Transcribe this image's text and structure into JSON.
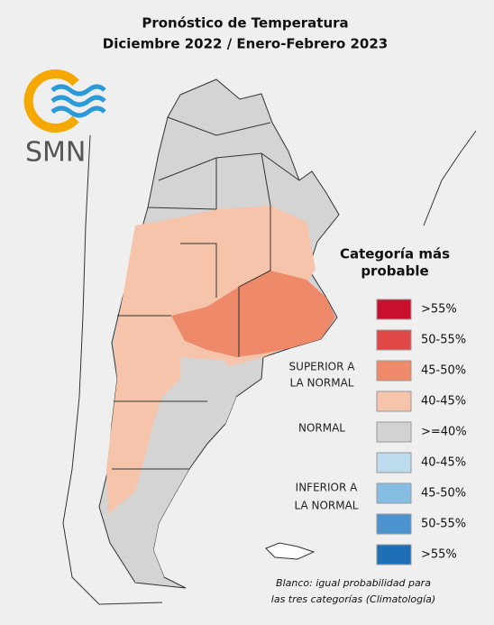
{
  "header": {
    "title": "Pronóstico de Temperatura",
    "subtitle": "Diciembre 2022 / Enero-Febrero 2023"
  },
  "logo": {
    "text": "SMN"
  },
  "legend": {
    "title_lines": [
      "Categoría más",
      "probable"
    ],
    "items": [
      {
        "label": ">55%",
        "color": "#c8102e"
      },
      {
        "label": "50-55%",
        "color": "#e04848"
      },
      {
        "label": "45-50%",
        "color": "#ee8a6a"
      },
      {
        "label": "40-45%",
        "color": "#f6c4ab"
      },
      {
        "label": ">=40%",
        "color": "#d2d2d2"
      },
      {
        "label": "40-45%",
        "color": "#bcdcee"
      },
      {
        "label": "45-50%",
        "color": "#86bde2"
      },
      {
        "label": "50-55%",
        "color": "#4a93cf"
      },
      {
        "label": ">55%",
        "color": "#1f6fb7"
      }
    ],
    "groups": [
      {
        "lines": [
          "SUPERIOR A",
          "LA NORMAL"
        ]
      },
      {
        "lines": [
          "NORMAL"
        ]
      },
      {
        "lines": [
          "INFERIOR A",
          "LA NORMAL"
        ]
      }
    ]
  },
  "footnote": {
    "lines": [
      "Blanco: igual probabilidad para",
      "las tres categorías (Climatología)"
    ]
  }
}
